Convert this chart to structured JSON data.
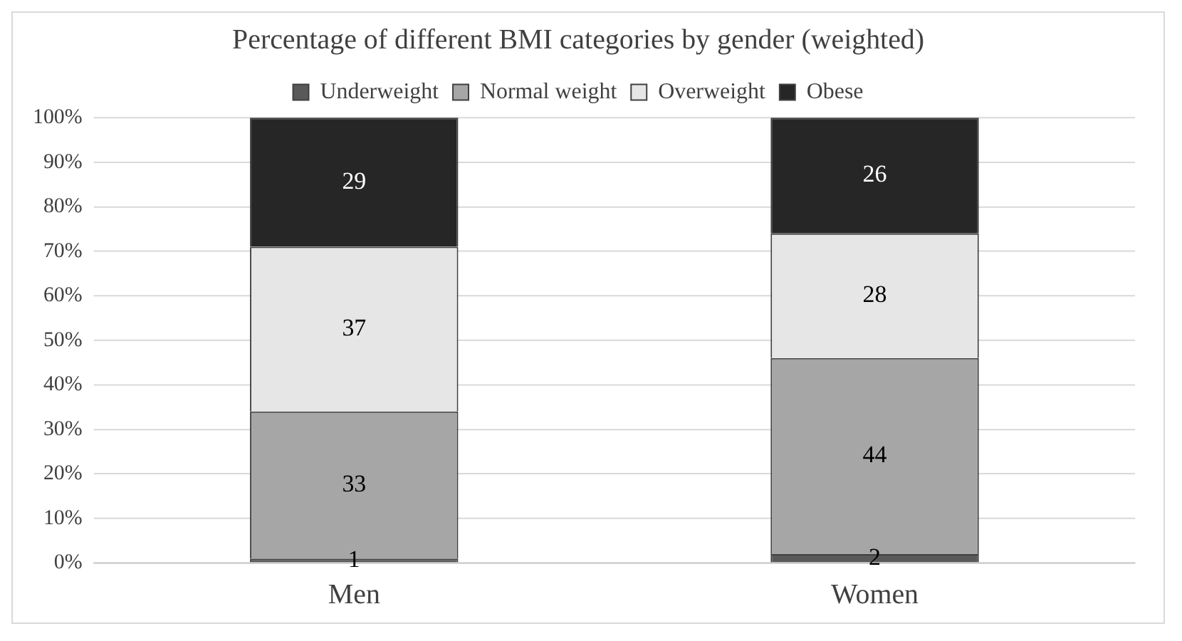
{
  "chart_data": {
    "type": "bar",
    "title": "Percentage of different BMI categories by gender (weighted)",
    "categories": [
      "Men",
      "Women"
    ],
    "stacked": true,
    "series": [
      {
        "name": "Underweight",
        "color": "#595959",
        "values": [
          1,
          2
        ]
      },
      {
        "name": "Normal weight",
        "color": "#a6a6a6",
        "values": [
          33,
          44
        ]
      },
      {
        "name": "Overweight",
        "color": "#e6e6e6",
        "values": [
          37,
          28
        ]
      },
      {
        "name": "Obese",
        "color": "#262626",
        "values": [
          29,
          26
        ]
      }
    ],
    "ylim": [
      0,
      100
    ],
    "yticks": [
      {
        "value": 0,
        "label": "0%"
      },
      {
        "value": 10,
        "label": "10%"
      },
      {
        "value": 20,
        "label": "20%"
      },
      {
        "value": 30,
        "label": "30%"
      },
      {
        "value": 40,
        "label": "40%"
      },
      {
        "value": 50,
        "label": "50%"
      },
      {
        "value": 60,
        "label": "60%"
      },
      {
        "value": 70,
        "label": "70%"
      },
      {
        "value": 80,
        "label": "80%"
      },
      {
        "value": 90,
        "label": "90%"
      },
      {
        "value": 100,
        "label": "100%"
      }
    ],
    "grid": "y",
    "legend": "top",
    "data_labels": true
  }
}
